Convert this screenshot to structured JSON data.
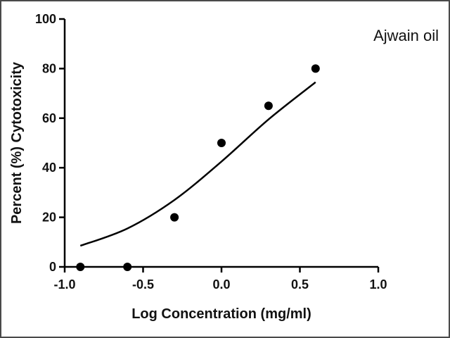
{
  "chart_data": {
    "type": "scatter",
    "xlabel": "Log Concentration (mg/ml)",
    "ylabel": "Percent (%) Cytotoxicity",
    "annotation": "Ajwain oil",
    "xlim": [
      -1.0,
      1.0
    ],
    "ylim": [
      0,
      100
    ],
    "xticks": [
      -1.0,
      -0.5,
      0.0,
      0.5,
      1.0
    ],
    "xtick_labels": [
      "-1.0",
      "-0.5",
      "0.0",
      "0.5",
      "1.0"
    ],
    "yticks": [
      0,
      20,
      40,
      60,
      80,
      100
    ],
    "ytick_labels": [
      "0",
      "20",
      "40",
      "60",
      "80",
      "100"
    ],
    "grid": false,
    "legend": "none",
    "points": [
      {
        "x": -0.9,
        "y": 0
      },
      {
        "x": -0.6,
        "y": 0
      },
      {
        "x": -0.3,
        "y": 20
      },
      {
        "x": 0.0,
        "y": 50
      },
      {
        "x": 0.3,
        "y": 65
      },
      {
        "x": 0.6,
        "y": 80
      }
    ],
    "fit_curve": [
      {
        "x": -0.9,
        "y": 8.5
      },
      {
        "x": -0.6,
        "y": 15.5
      },
      {
        "x": -0.3,
        "y": 27
      },
      {
        "x": 0.0,
        "y": 42.5
      },
      {
        "x": 0.3,
        "y": 59.5
      },
      {
        "x": 0.6,
        "y": 74.5
      }
    ],
    "colors": {
      "marker": "#000000",
      "line": "#000000",
      "axis": "#000000"
    }
  }
}
